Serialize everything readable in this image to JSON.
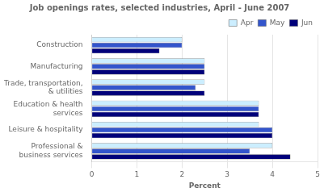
{
  "chart_data": {
    "type": "bar",
    "orientation": "horizontal",
    "title": "Job openings rates, selected industries, April - June 2007",
    "categories": [
      "Construction",
      "Manufacturing",
      "Trade, transportation,\n& utilities",
      "Education & health\nservices",
      "Leisure & hospitality",
      "Professional &\nbusiness services"
    ],
    "series": [
      {
        "name": "Apr",
        "color": "#cceeff",
        "values": [
          2.0,
          2.5,
          2.5,
          3.7,
          3.7,
          4.0
        ]
      },
      {
        "name": "May",
        "color": "#3355cc",
        "values": [
          2.0,
          2.5,
          2.3,
          3.7,
          4.0,
          3.5
        ]
      },
      {
        "name": "Jun",
        "color": "#00007a",
        "values": [
          1.5,
          2.5,
          2.5,
          3.7,
          4.0,
          4.4
        ]
      }
    ],
    "xlabel": "Percent",
    "xlim": [
      0,
      5
    ],
    "xticks": [
      0,
      1,
      2,
      3,
      4,
      5
    ],
    "grid": true,
    "legend": "upper right"
  }
}
